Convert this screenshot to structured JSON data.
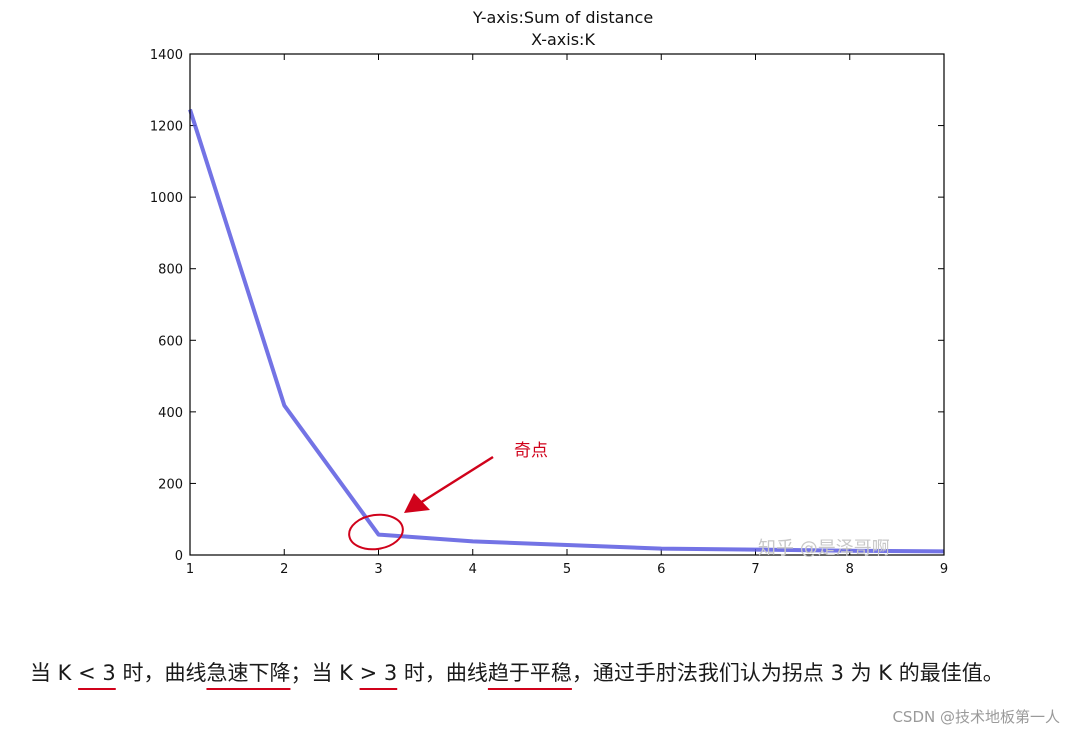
{
  "chart_data": {
    "type": "line",
    "title_lines": [
      "Y-axis:Sum of distance",
      "X-axis:K"
    ],
    "x": [
      1,
      2,
      3,
      4,
      5,
      6,
      7,
      8,
      9
    ],
    "series": [
      {
        "values": [
          1245,
          418,
          57,
          38,
          28,
          18,
          15,
          12,
          10
        ],
        "color": "#5a5ae0"
      }
    ],
    "xlim": [
      1,
      9
    ],
    "ylim": [
      0,
      1400
    ],
    "xticks": [
      "1",
      "2",
      "3",
      "4",
      "5",
      "6",
      "7",
      "8",
      "9"
    ],
    "yticks": [
      "0",
      "200",
      "400",
      "600",
      "800",
      "1000",
      "1200",
      "1400"
    ],
    "grid": false,
    "annotation": {
      "text": "奇点",
      "x": 3,
      "y": 57,
      "color": "#d0021b"
    }
  },
  "watermark": "知乎 @是泽哥啊",
  "caption": {
    "p1": "当 K ",
    "u1": "< 3",
    "p2": " 时，曲线",
    "u2": "急速下降",
    "p3": "；当 K ",
    "u3": "> 3",
    "p4": " 时，曲线",
    "u4": "趋于平稳",
    "p5": "，通过手肘法我们认为拐点 3 为 K 的最佳值。"
  },
  "footer": {
    "credit": "CSDN @技术地板第一人"
  }
}
